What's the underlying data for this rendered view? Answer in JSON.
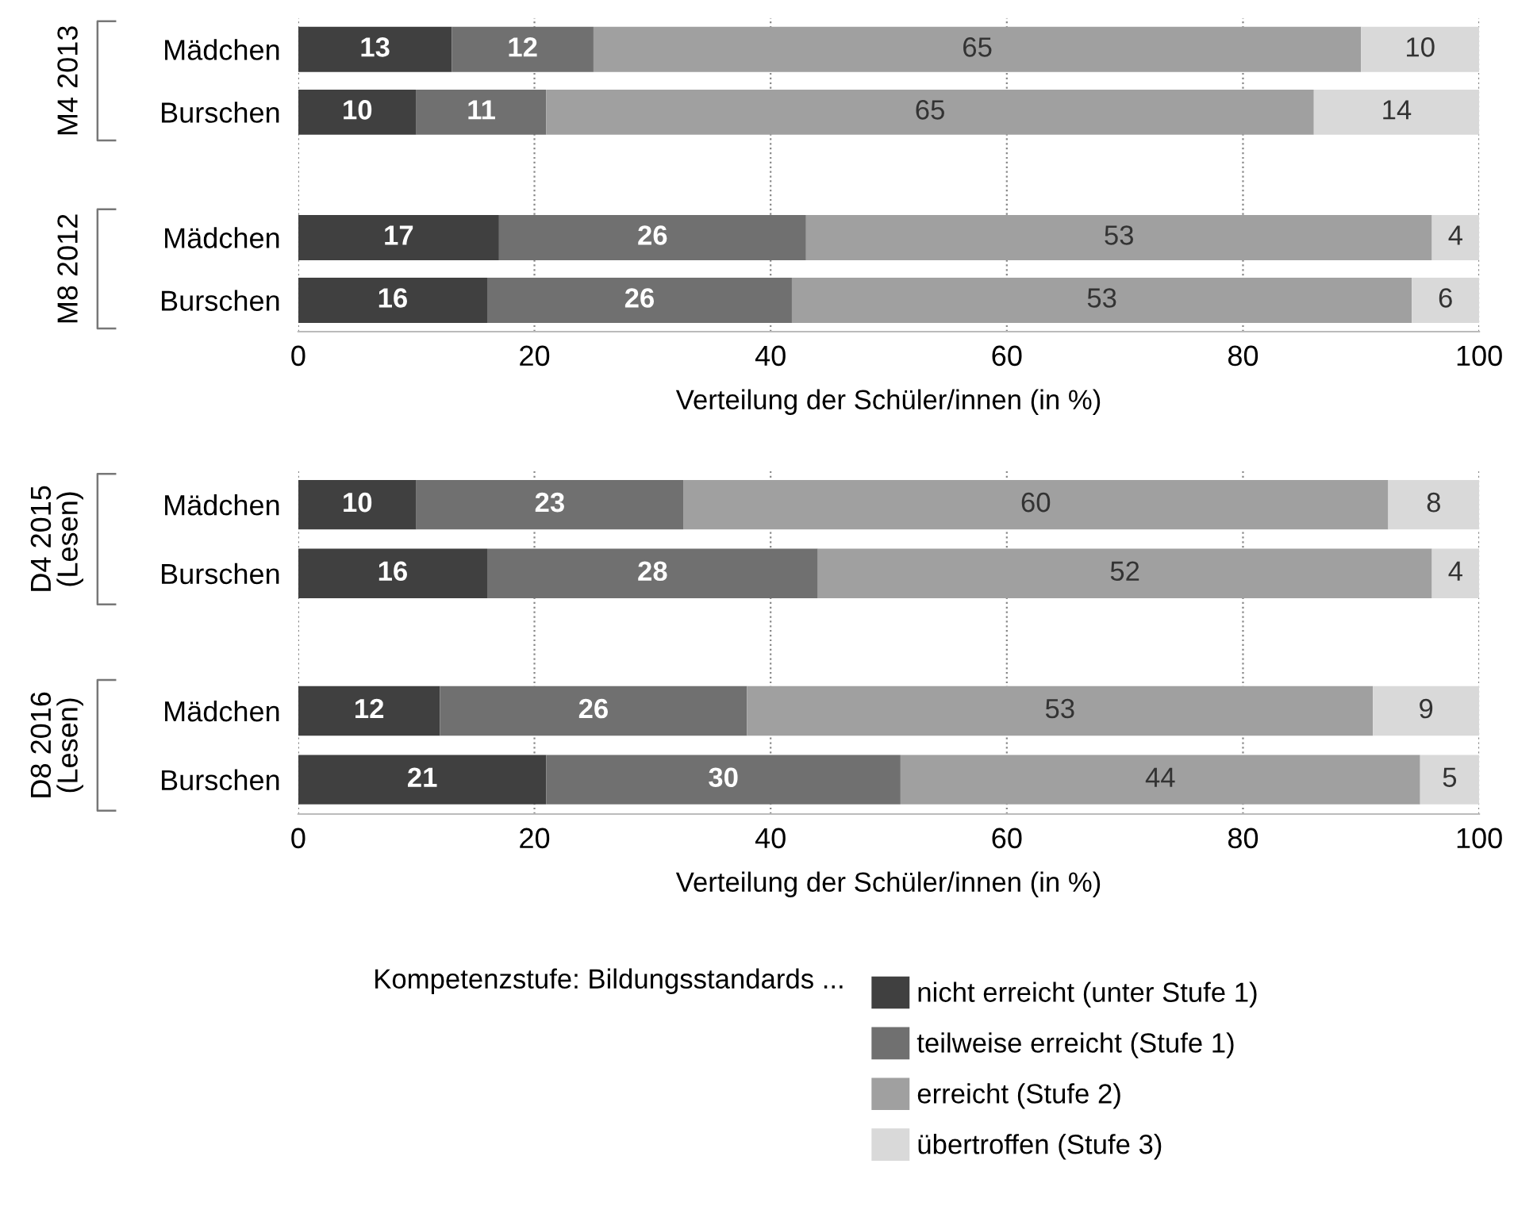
{
  "chart_data": [
    {
      "type": "bar",
      "orientation": "horizontal",
      "stacked": true,
      "categories": [
        "Mädchen",
        "Burschen",
        null,
        "Mädchen",
        "Burschen"
      ],
      "xlabel": "Verteilung der Schüler/innen (in %)",
      "xlim": [
        0,
        100
      ],
      "xticks": [
        0,
        20,
        40,
        60,
        80,
        100
      ],
      "grid": "x",
      "line_style": "dotted",
      "legend": false,
      "annotations": [
        "M4 2013",
        "M8 2012"
      ],
      "series": [
        {
          "color": "#404040",
          "values": [
            13,
            10,
            null,
            17,
            16
          ],
          "value_labels": [
            "13",
            "10",
            null,
            "17",
            "16"
          ]
        },
        {
          "color": "#707070",
          "values": [
            12,
            11,
            null,
            26,
            25.8
          ],
          "value_labels": [
            "12",
            "11",
            null,
            "26",
            "26"
          ]
        },
        {
          "color": "#a0a0a0",
          "values": [
            65,
            65,
            null,
            53,
            52.5
          ],
          "value_labels": [
            "65",
            "65",
            null,
            "53",
            "53"
          ]
        },
        {
          "color": "#d9d9d9",
          "values": [
            10,
            14,
            null,
            4,
            5.7
          ],
          "value_labels": [
            "10",
            "14",
            null,
            "4",
            "6"
          ]
        }
      ]
    },
    {
      "type": "bar",
      "orientation": "horizontal",
      "stacked": true,
      "categories": [
        "Mädchen",
        "Burschen",
        null,
        "Mädchen",
        "Burschen"
      ],
      "xlabel": "Verteilung der Schüler/innen (in %)",
      "xlim": [
        0,
        100
      ],
      "xticks": [
        0,
        20,
        40,
        60,
        80,
        100
      ],
      "grid": "x",
      "line_style": "dotted",
      "legend": "bottom",
      "legend_title": "Kompetenzstufe: Bildungsstandards ...",
      "annotations": [
        "D4 2015\n(Lesen)",
        "D8 2016\n(Lesen)"
      ],
      "series": [
        {
          "name": "nicht erreicht (unter Stufe 1)",
          "color": "#404040",
          "values": [
            10,
            16,
            null,
            12,
            21
          ],
          "value_labels": [
            "10",
            "16",
            null,
            "12",
            "21"
          ]
        },
        {
          "name": "teilweise erreicht (Stufe 1)",
          "color": "#707070",
          "values": [
            22.6,
            28,
            null,
            26,
            30
          ],
          "value_labels": [
            "23",
            "28",
            null,
            "26",
            "30"
          ]
        },
        {
          "name": "erreicht (Stufe 2)",
          "color": "#a0a0a0",
          "values": [
            59.7,
            52,
            null,
            53,
            44
          ],
          "value_labels": [
            "60",
            "52",
            null,
            "53",
            "44"
          ]
        },
        {
          "name": "übertroffen (Stufe 3)",
          "color": "#d9d9d9",
          "values": [
            7.7,
            4,
            null,
            9,
            5
          ],
          "value_labels": [
            "8",
            "4",
            null,
            "9",
            "5"
          ]
        }
      ]
    }
  ]
}
